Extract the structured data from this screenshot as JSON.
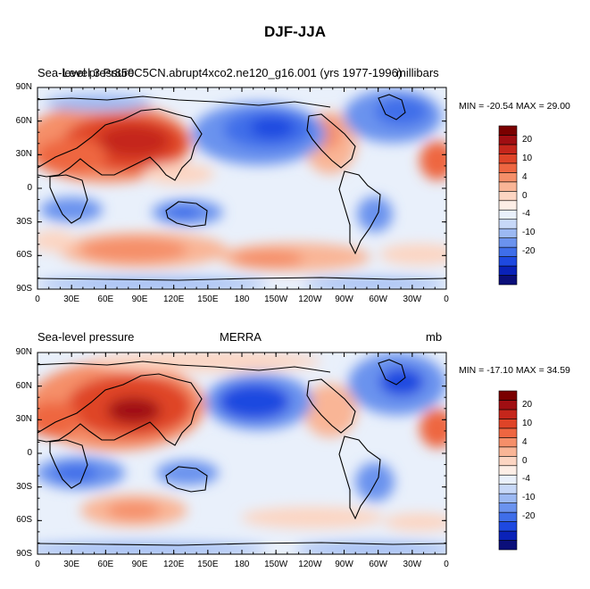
{
  "title": "DJF-JJA",
  "colorbar": {
    "colors": [
      "#0b0f7a",
      "#0a22b8",
      "#1e49e0",
      "#3f6ee9",
      "#6b93ee",
      "#9cb9f3",
      "#c7d8f8",
      "#e9f0fb",
      "#fdeee6",
      "#fcd5c2",
      "#f9b596",
      "#f58f69",
      "#ee6641",
      "#df4428",
      "#c5261b",
      "#a00e12",
      "#7a0000"
    ],
    "tick_labels": [
      "20",
      "10",
      "4",
      "0",
      "-4",
      "-10",
      "-20"
    ]
  },
  "axes": {
    "lat_labels": [
      "90N",
      "60N",
      "30N",
      "0",
      "30S",
      "60S",
      "90S"
    ],
    "lon_labels": [
      "0",
      "30E",
      "60E",
      "90E",
      "120E",
      "150E",
      "180",
      "150W",
      "120W",
      "90W",
      "60W",
      "30W",
      "0"
    ]
  },
  "panels": [
    {
      "left_label": "Sea-level pressure",
      "overlap_label": "Level 3 Pr850C5CN.abrupt4xco2.ne120_g16.001 (yrs 1977-1996)",
      "center_label": "",
      "right_label": "millibars",
      "stats": "MIN = -20.54 MAX =  29.00"
    },
    {
      "left_label": "Sea-level pressure",
      "overlap_label": "",
      "center_label": "MERRA",
      "right_label": "mb",
      "stats": "MIN = -17.10 MAX =  34.59"
    }
  ]
}
